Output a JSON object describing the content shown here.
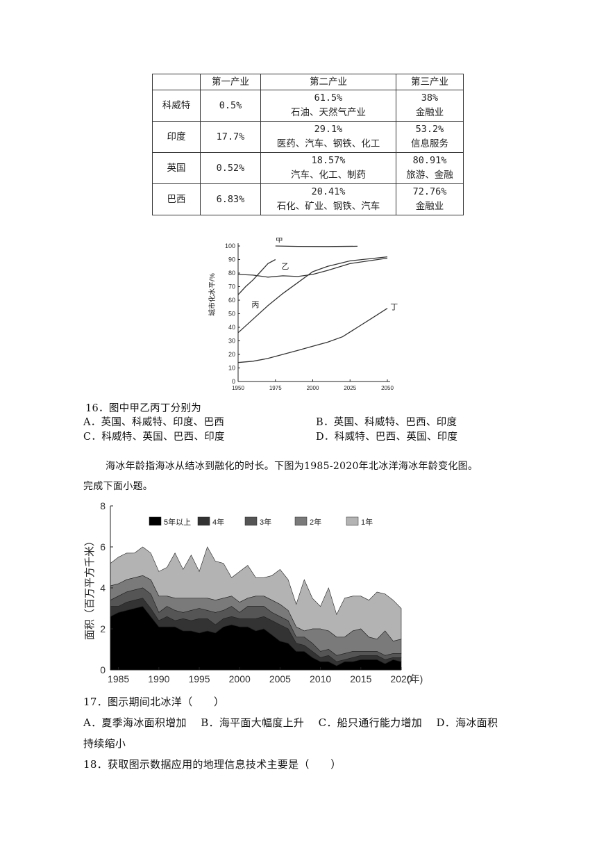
{
  "table": {
    "headers": [
      "",
      "第一产业",
      "第二产业",
      "第三产业"
    ],
    "rows": [
      {
        "country": "科威特",
        "primary": "0.5%",
        "secondary_pct": "61.5%",
        "secondary_desc": "石油、天然气产业",
        "tertiary_pct": "38%",
        "tertiary_desc": "金融业"
      },
      {
        "country": "印度",
        "primary": "17.7%",
        "secondary_pct": "29.1%",
        "secondary_desc": "医药、汽车、钢铁、化工",
        "tertiary_pct": "53.2%",
        "tertiary_desc": "信息服务"
      },
      {
        "country": "英国",
        "primary": "0.52%",
        "secondary_pct": "18.57%",
        "secondary_desc": "汽车、化工、制药",
        "tertiary_pct": "80.91%",
        "tertiary_desc": "旅游、金融"
      },
      {
        "country": "巴西",
        "primary": "6.83%",
        "secondary_pct": "20.41%",
        "secondary_desc": "石化、矿业、钢铁、汽车",
        "tertiary_pct": "72.76%",
        "tertiary_desc": "金融业"
      }
    ]
  },
  "chart_data": [
    {
      "type": "line",
      "ylabel": "城市化水平/%",
      "xlim": [
        1950,
        2050
      ],
      "ylim": [
        0,
        100
      ],
      "x_ticks": [
        "1950",
        "1975",
        "2000",
        "2025",
        "2050"
      ],
      "y_ticks": [
        "0",
        "10",
        "20",
        "30",
        "40",
        "50",
        "60",
        "70",
        "80",
        "90",
        "100"
      ],
      "series": [
        {
          "name": "甲",
          "points": [
            [
              1975,
              100
            ],
            [
              1990,
              99.7
            ],
            [
              2010,
              99.6
            ],
            [
              2030,
              99.8
            ]
          ]
        },
        {
          "name": "乙",
          "points": [
            [
              1950,
              64
            ],
            [
              1955,
              70
            ],
            [
              1960,
              75
            ],
            [
              1965,
              81
            ],
            [
              1970,
              87
            ],
            [
              1975,
              90
            ]
          ]
        },
        {
          "name": "丙",
          "points": [
            [
              1950,
              79
            ],
            [
              1960,
              78.5
            ],
            [
              1970,
              77
            ],
            [
              1980,
              78
            ],
            [
              1990,
              77.5
            ],
            [
              2000,
              79
            ],
            [
              2010,
              82
            ],
            [
              2025,
              87
            ],
            [
              2050,
              91
            ]
          ]
        },
        {
          "name": "丙",
          "points": [
            [
              1950,
              36
            ],
            [
              1960,
              46
            ],
            [
              1970,
              56
            ],
            [
              1980,
              65
            ],
            [
              1990,
              73
            ],
            [
              2000,
              81
            ],
            [
              2010,
              85
            ],
            [
              2025,
              89
            ],
            [
              2050,
              92
            ]
          ]
        },
        {
          "name": "丁",
          "points": [
            [
              1950,
              14
            ],
            [
              1960,
              15
            ],
            [
              1970,
              17
            ],
            [
              1980,
              20
            ],
            [
              1990,
              23
            ],
            [
              2000,
              26
            ],
            [
              2010,
              29
            ],
            [
              2020,
              33
            ],
            [
              2030,
              40
            ],
            [
              2040,
              47
            ],
            [
              2050,
              54
            ]
          ]
        }
      ]
    },
    {
      "type": "area",
      "stacked": true,
      "ylabel": "面积（百万平方千米）",
      "xlabel": "(年)",
      "xlim": [
        1984,
        2020
      ],
      "ylim": [
        0,
        8
      ],
      "x_ticks": [
        "1985",
        "1990",
        "1995",
        "2000",
        "2005",
        "2010",
        "2015",
        "2020"
      ],
      "y_ticks": [
        "0",
        "2",
        "4",
        "6",
        "8"
      ],
      "x": [
        1984,
        1985,
        1986,
        1987,
        1988,
        1989,
        1990,
        1991,
        1992,
        1993,
        1994,
        1995,
        1996,
        1997,
        1998,
        1999,
        2000,
        2001,
        2002,
        2003,
        2004,
        2005,
        2006,
        2007,
        2008,
        2009,
        2010,
        2011,
        2012,
        2013,
        2014,
        2015,
        2016,
        2017,
        2018,
        2019,
        2020
      ],
      "series": [
        {
          "name": "5年以上",
          "color": "#000000",
          "values": [
            2.6,
            2.8,
            2.9,
            3.0,
            3.1,
            2.6,
            2.1,
            2.1,
            2.1,
            1.9,
            1.9,
            1.8,
            1.9,
            1.8,
            2.1,
            2.2,
            2.1,
            2.1,
            1.9,
            2.0,
            1.7,
            1.4,
            1.3,
            0.9,
            0.9,
            0.6,
            0.4,
            0.4,
            0.2,
            0.4,
            0.4,
            0.5,
            0.5,
            0.5,
            0.3,
            0.5,
            0.4
          ]
        },
        {
          "name": "4年",
          "color": "#333333",
          "values": [
            0.5,
            0.3,
            0.4,
            0.4,
            0.4,
            0.4,
            0.3,
            0.5,
            0.3,
            0.6,
            0.5,
            0.7,
            0.6,
            0.4,
            0.4,
            0.4,
            0.4,
            0.4,
            0.6,
            0.6,
            0.7,
            0.8,
            0.7,
            0.4,
            0.3,
            0.3,
            0.2,
            0.3,
            0.2,
            0.1,
            0.2,
            0.2,
            0.2,
            0.2,
            0.2,
            0.1,
            0.2
          ]
        },
        {
          "name": "3年",
          "color": "#555555",
          "values": [
            0.3,
            0.5,
            0.5,
            0.5,
            0.5,
            0.7,
            0.4,
            0.5,
            0.5,
            0.3,
            0.5,
            0.5,
            0.4,
            0.6,
            0.4,
            0.5,
            0.3,
            0.6,
            0.6,
            0.5,
            0.4,
            0.4,
            0.4,
            0.3,
            0.4,
            0.4,
            0.3,
            0.3,
            0.3,
            0.3,
            0.3,
            0.2,
            0.2,
            0.2,
            0.2,
            0.2,
            0.2
          ]
        },
        {
          "name": "2年",
          "color": "#7a7a7a",
          "values": [
            0.7,
            0.6,
            0.6,
            0.6,
            0.6,
            0.7,
            0.8,
            0.5,
            0.6,
            0.7,
            0.6,
            0.5,
            0.6,
            0.6,
            0.6,
            0.5,
            0.5,
            0.4,
            0.5,
            0.5,
            0.6,
            0.6,
            0.5,
            0.5,
            0.3,
            0.7,
            1.1,
            0.9,
            0.9,
            0.8,
            1.0,
            1.1,
            0.7,
            0.6,
            1.2,
            0.6,
            0.7
          ]
        },
        {
          "name": "1年",
          "color": "#b3b3b3",
          "values": [
            1.1,
            1.3,
            1.3,
            1.2,
            1.4,
            1.3,
            1.2,
            1.4,
            2.2,
            1.4,
            2.1,
            1.3,
            2.5,
            1.9,
            1.7,
            0.9,
            1.5,
            1.6,
            0.9,
            0.9,
            1.2,
            1.7,
            1.5,
            1.1,
            2.5,
            1.5,
            1.1,
            2.1,
            1.1,
            1.9,
            1.7,
            1.6,
            1.8,
            2.3,
            1.8,
            2.0,
            1.5
          ]
        }
      ]
    }
  ],
  "q16": {
    "stem": "16．图中甲乙丙丁分别为",
    "a": "A．英国、科威特、印度、巴西",
    "b": "B．英国、科威特、巴西、印度",
    "c": "C．科威特、英国、巴西、印度",
    "d": "D．科威特、巴西、英国、印度"
  },
  "intro": {
    "line1": "海冰年龄指海冰从结冰到融化的时长。下图为1985-2020年北冰洋海冰年龄变化图。",
    "line2": "完成下面小题。"
  },
  "q17": {
    "stem": "17．图示期间北冰洋（　　）",
    "options_line": "A．夏季海冰面积增加　 B．海平面大幅度上升　 C．船只通行能力增加　 D．海冰面积",
    "cont": "持续缩小"
  },
  "q18": {
    "stem": "18．获取图示数据应用的地理信息技术主要是（　　）"
  }
}
